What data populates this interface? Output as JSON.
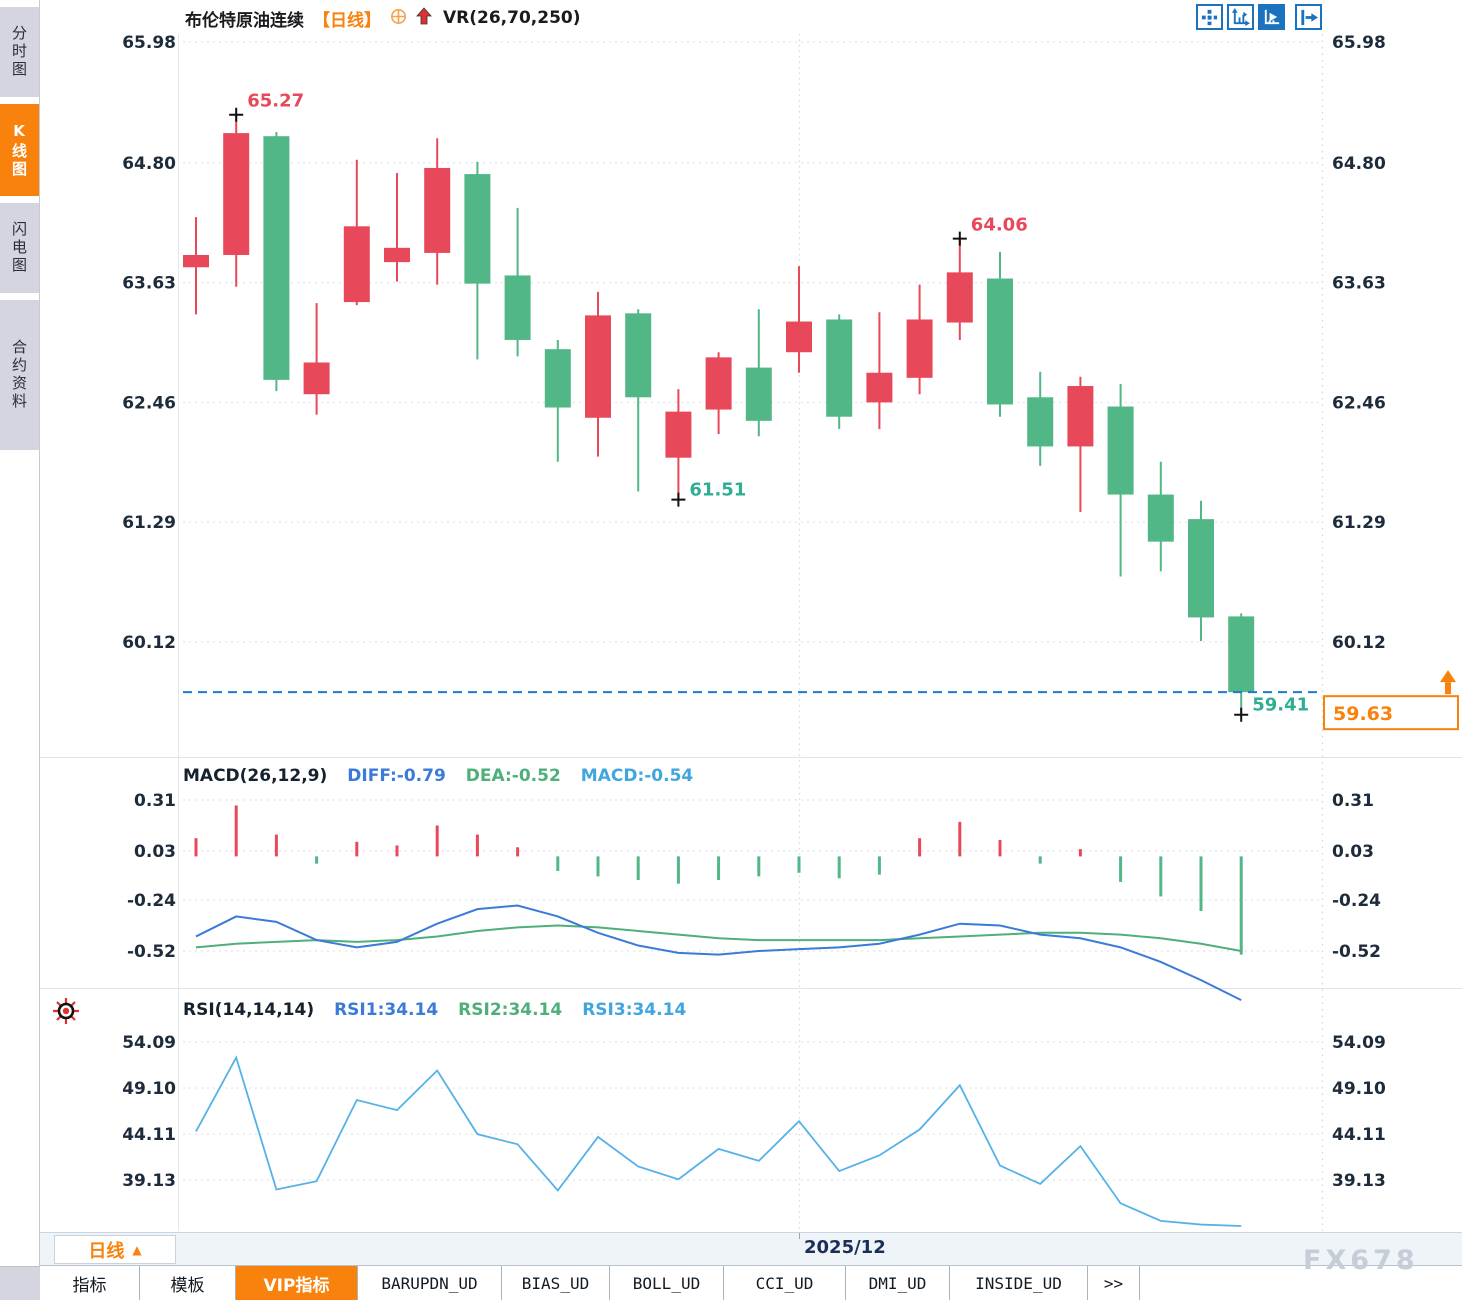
{
  "sidebar": {
    "tabs": [
      {
        "label": "分时图",
        "active": false
      },
      {
        "label": "K线图",
        "active": true
      },
      {
        "label": "闪电图",
        "active": false
      },
      {
        "label": "合约资料",
        "active": false
      }
    ]
  },
  "header": {
    "symbol": "布伦特原油连续",
    "period_tag": "【日线】",
    "indicator_label": "VR(26,70,250)"
  },
  "toolbar": {
    "icons": [
      "move-crosshair",
      "axis-scale",
      "axis-play-active",
      "pan-right"
    ]
  },
  "footer": {
    "period_button_label": "日线",
    "period_button_arrow": "▲",
    "date_label": "2025/12",
    "watermark": "FX678"
  },
  "tabs_bar": {
    "tabs": [
      {
        "label": "指标",
        "active": false
      },
      {
        "label": "模板",
        "active": false
      },
      {
        "label": "VIP指标",
        "active": true
      },
      {
        "label": "BARUPDN_UD",
        "active": false
      },
      {
        "label": "BIAS_UD",
        "active": false
      },
      {
        "label": "BOLL_UD",
        "active": false
      },
      {
        "label": "CCI_UD",
        "active": false
      },
      {
        "label": "DMI_UD",
        "active": false
      },
      {
        "label": "INSIDE_UD",
        "active": false
      },
      {
        "label": ">>",
        "active": false
      }
    ]
  },
  "colors": {
    "up": "#e8495a",
    "down": "#51b786",
    "accent_orange": "#f8820c",
    "diff_blue": "#3b7ad9",
    "dea_green": "#4fae7a",
    "macd_cyan": "#41a6dd",
    "rsi_line": "#55b2e6",
    "axis_text": "#1d2b3a",
    "teal_label": "#2fae94",
    "red_label": "#e8495a",
    "current_line_blue": "#1f78d1",
    "grid": "#e4e8ec",
    "separator": "#dce4ec",
    "marker_black": "#111111"
  },
  "chart_data": {
    "type": "candlestick-with-indicators",
    "main": {
      "type": "candlestick",
      "y_ticks": [
        65.98,
        64.8,
        63.63,
        62.46,
        61.29,
        60.12
      ],
      "month_boundary_index": 15,
      "current_price": 59.63,
      "current_price_label": "59.63",
      "candles": [
        {
          "o": 63.78,
          "h": 64.27,
          "l": 63.32,
          "c": 63.9
        },
        {
          "o": 63.9,
          "h": 65.27,
          "l": 63.59,
          "c": 65.09
        },
        {
          "o": 65.06,
          "h": 65.1,
          "l": 62.57,
          "c": 62.68
        },
        {
          "o": 62.54,
          "h": 63.43,
          "l": 62.34,
          "c": 62.85
        },
        {
          "o": 63.44,
          "h": 64.83,
          "l": 63.41,
          "c": 64.18
        },
        {
          "o": 63.83,
          "h": 64.7,
          "l": 63.64,
          "c": 63.97
        },
        {
          "o": 63.92,
          "h": 65.04,
          "l": 63.61,
          "c": 64.75
        },
        {
          "o": 64.69,
          "h": 64.81,
          "l": 62.88,
          "c": 63.62
        },
        {
          "o": 63.7,
          "h": 64.36,
          "l": 62.91,
          "c": 63.07
        },
        {
          "o": 62.98,
          "h": 63.07,
          "l": 61.88,
          "c": 62.41
        },
        {
          "o": 62.31,
          "h": 63.54,
          "l": 61.93,
          "c": 63.31
        },
        {
          "o": 63.33,
          "h": 63.37,
          "l": 61.59,
          "c": 62.51
        },
        {
          "o": 61.92,
          "h": 62.59,
          "l": 61.51,
          "c": 62.37
        },
        {
          "o": 62.39,
          "h": 62.95,
          "l": 62.15,
          "c": 62.9
        },
        {
          "o": 62.8,
          "h": 63.37,
          "l": 62.13,
          "c": 62.28
        },
        {
          "o": 62.95,
          "h": 63.79,
          "l": 62.75,
          "c": 63.25
        },
        {
          "o": 63.27,
          "h": 63.32,
          "l": 62.2,
          "c": 62.32
        },
        {
          "o": 62.46,
          "h": 63.34,
          "l": 62.2,
          "c": 62.75
        },
        {
          "o": 62.7,
          "h": 63.61,
          "l": 62.54,
          "c": 63.27
        },
        {
          "o": 63.24,
          "h": 64.06,
          "l": 63.07,
          "c": 63.73
        },
        {
          "o": 63.67,
          "h": 63.93,
          "l": 62.32,
          "c": 62.44
        },
        {
          "o": 62.51,
          "h": 62.76,
          "l": 61.84,
          "c": 62.03
        },
        {
          "o": 62.03,
          "h": 62.71,
          "l": 61.39,
          "c": 62.62
        },
        {
          "o": 62.42,
          "h": 62.64,
          "l": 60.76,
          "c": 61.56
        },
        {
          "o": 61.56,
          "h": 61.88,
          "l": 60.81,
          "c": 61.1
        },
        {
          "o": 61.32,
          "h": 61.5,
          "l": 60.13,
          "c": 60.36
        },
        {
          "o": 60.37,
          "h": 60.4,
          "l": 59.41,
          "c": 59.63
        }
      ],
      "annotations": [
        {
          "label": "65.27",
          "candle_index": 1,
          "anchor": "high",
          "color": "red_label"
        },
        {
          "label": "64.06",
          "candle_index": 19,
          "anchor": "high",
          "color": "red_label"
        },
        {
          "label": "61.51",
          "candle_index": 12,
          "anchor": "low",
          "color": "teal_label"
        },
        {
          "label": "59.41",
          "candle_index": 26,
          "anchor": "low",
          "color": "teal_label"
        }
      ]
    },
    "macd": {
      "type": "macd",
      "params_label": "MACD(26,12,9)",
      "diff_label": "DIFF:-0.79",
      "dea_label": "DEA:-0.52",
      "macd_label": "MACD:-0.54",
      "y_ticks": [
        0.31,
        0.03,
        -0.24,
        -0.52
      ],
      "hist": [
        0.1,
        0.28,
        0.12,
        -0.04,
        0.08,
        0.06,
        0.17,
        0.12,
        0.05,
        -0.08,
        -0.11,
        -0.13,
        -0.15,
        -0.13,
        -0.11,
        -0.09,
        -0.12,
        -0.1,
        0.1,
        0.19,
        0.09,
        -0.04,
        0.04,
        -0.14,
        -0.22,
        -0.3,
        -0.54
      ],
      "diff": [
        -0.44,
        -0.33,
        -0.36,
        -0.46,
        -0.5,
        -0.47,
        -0.37,
        -0.29,
        -0.27,
        -0.33,
        -0.42,
        -0.49,
        -0.53,
        -0.54,
        -0.52,
        -0.51,
        -0.5,
        -0.48,
        -0.43,
        -0.37,
        -0.38,
        -0.43,
        -0.45,
        -0.5,
        -0.58,
        -0.68,
        -0.79
      ],
      "dea": [
        -0.5,
        -0.48,
        -0.47,
        -0.46,
        -0.47,
        -0.46,
        -0.44,
        -0.41,
        -0.39,
        -0.38,
        -0.39,
        -0.41,
        -0.43,
        -0.45,
        -0.46,
        -0.46,
        -0.46,
        -0.46,
        -0.45,
        -0.44,
        -0.43,
        -0.42,
        -0.42,
        -0.43,
        -0.45,
        -0.48,
        -0.52
      ]
    },
    "rsi": {
      "type": "line",
      "params_label": "RSI(14,14,14)",
      "rsi1_label": "RSI1:34.14",
      "rsi2_label": "RSI2:34.14",
      "rsi3_label": "RSI3:34.14",
      "y_ticks": [
        54.09,
        49.1,
        44.11,
        39.13
      ],
      "values": [
        44.4,
        52.4,
        38.1,
        39.0,
        47.8,
        46.7,
        51.0,
        44.1,
        43.0,
        38.0,
        43.8,
        40.6,
        39.2,
        42.5,
        41.2,
        45.5,
        40.1,
        41.8,
        44.6,
        49.4,
        40.7,
        38.7,
        42.8,
        36.6,
        34.7,
        34.3,
        34.14
      ]
    }
  }
}
